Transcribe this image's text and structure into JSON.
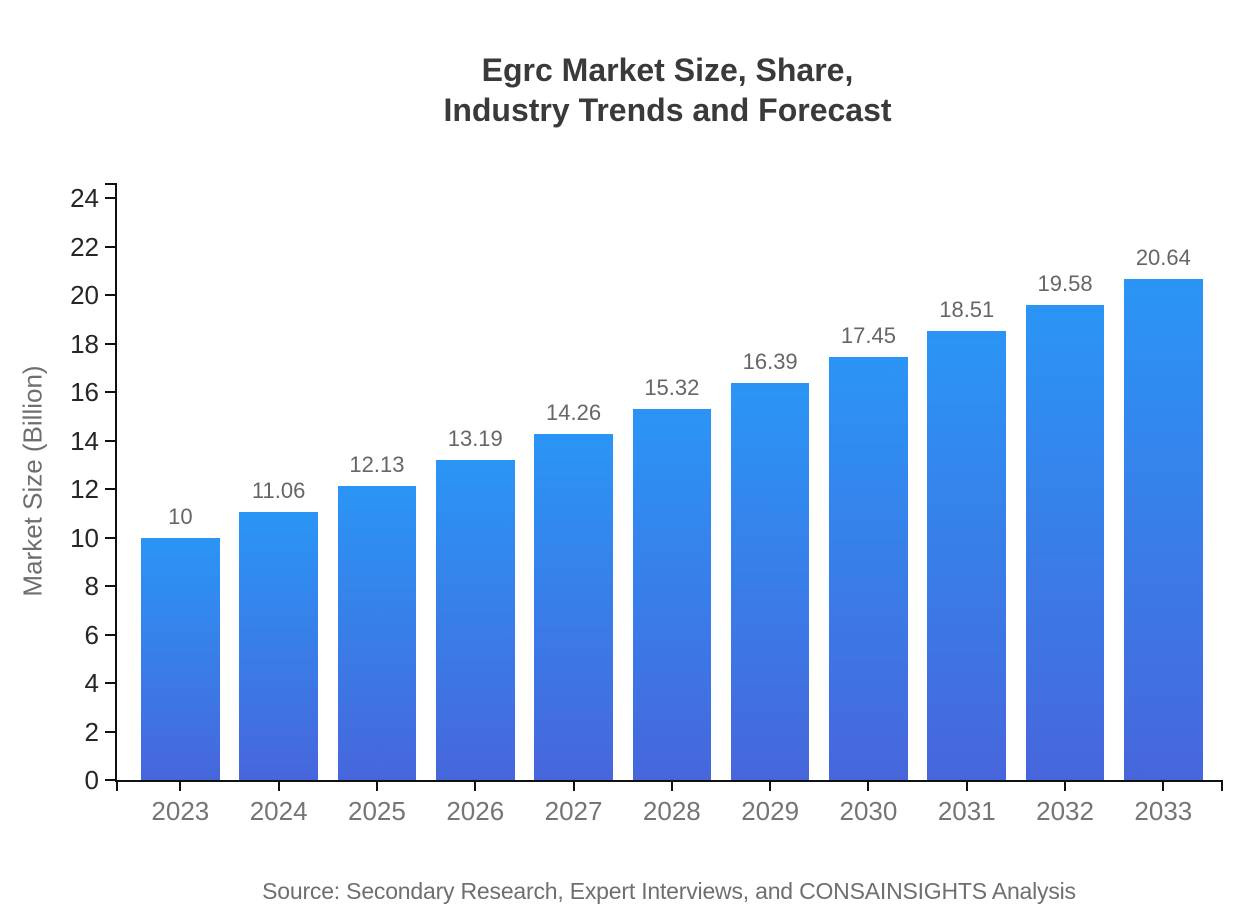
{
  "title": {
    "line1": "Egrc Market Size, Share,",
    "line2": "Industry Trends and Forecast"
  },
  "source_note": "Source: Secondary Research, Expert Interviews, and CONSAINSIGHTS Analysis",
  "chart_data": {
    "type": "bar",
    "title": "Egrc Market Size, Share, Industry Trends and Forecast",
    "categories": [
      "2023",
      "2024",
      "2025",
      "2026",
      "2027",
      "2028",
      "2029",
      "2030",
      "2031",
      "2032",
      "2033"
    ],
    "values": [
      10,
      11.06,
      12.13,
      13.19,
      14.26,
      15.32,
      16.39,
      17.45,
      18.51,
      19.58,
      20.64
    ],
    "value_labels": [
      "10",
      "11.06",
      "12.13",
      "13.19",
      "14.26",
      "15.32",
      "16.39",
      "17.45",
      "18.51",
      "19.58",
      "20.64"
    ],
    "xlabel": "",
    "ylabel": "Market Size (Billion)",
    "ylim": [
      0,
      24
    ],
    "ytick_step": 2,
    "grid": false,
    "legend_position": "none",
    "colors": {
      "bar_gradient_top": "#2a95f5",
      "bar_gradient_bottom": "#4766dc",
      "axis": "#111111",
      "y_tick_label": "#262626",
      "x_tick_label": "#757575",
      "value_label": "#666666",
      "title": "#3a3a3a",
      "y_axis_label": "#6e6e6e",
      "source": "#6f6f6f",
      "background": "#ffffff"
    }
  }
}
